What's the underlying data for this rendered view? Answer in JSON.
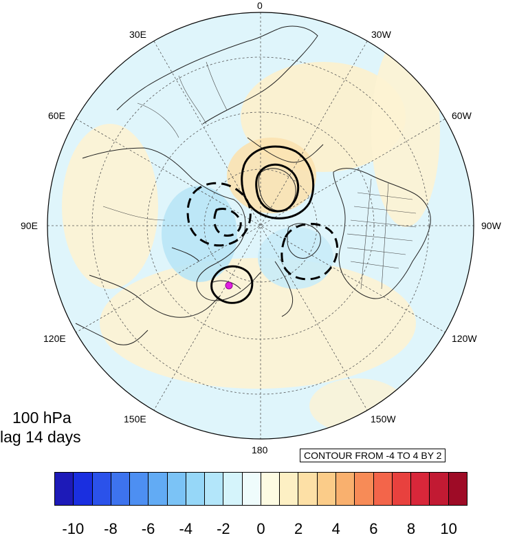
{
  "title": {
    "line1": "100 hPa",
    "line2": "lag 14 days"
  },
  "contour_note": "CONTOUR FROM -4 TO 4 BY 2",
  "longitude_labels": [
    "0",
    "30W",
    "60W",
    "90W",
    "120W",
    "150W",
    "180",
    "150E",
    "120E",
    "90E",
    "60E",
    "30E"
  ],
  "colorbar": {
    "colors": [
      "#1d1ab8",
      "#1a2fe0",
      "#2b52ea",
      "#3d73ee",
      "#4d8ff2",
      "#62abf4",
      "#7bc3f6",
      "#96d7f8",
      "#b3e6fa",
      "#d5f4fb",
      "#effcfc",
      "#fdfbe2",
      "#fdf0c4",
      "#fde0a6",
      "#fbcc89",
      "#f9b06e",
      "#f78b57",
      "#f3654a",
      "#e8413e",
      "#d8273a",
      "#c21a33",
      "#9e0b26"
    ],
    "tick_labels": [
      "-10",
      "-8",
      "-6",
      "-4",
      "-2",
      "0",
      "2",
      "4",
      "6",
      "8",
      "10"
    ]
  },
  "marker_color": "#e020e0"
}
